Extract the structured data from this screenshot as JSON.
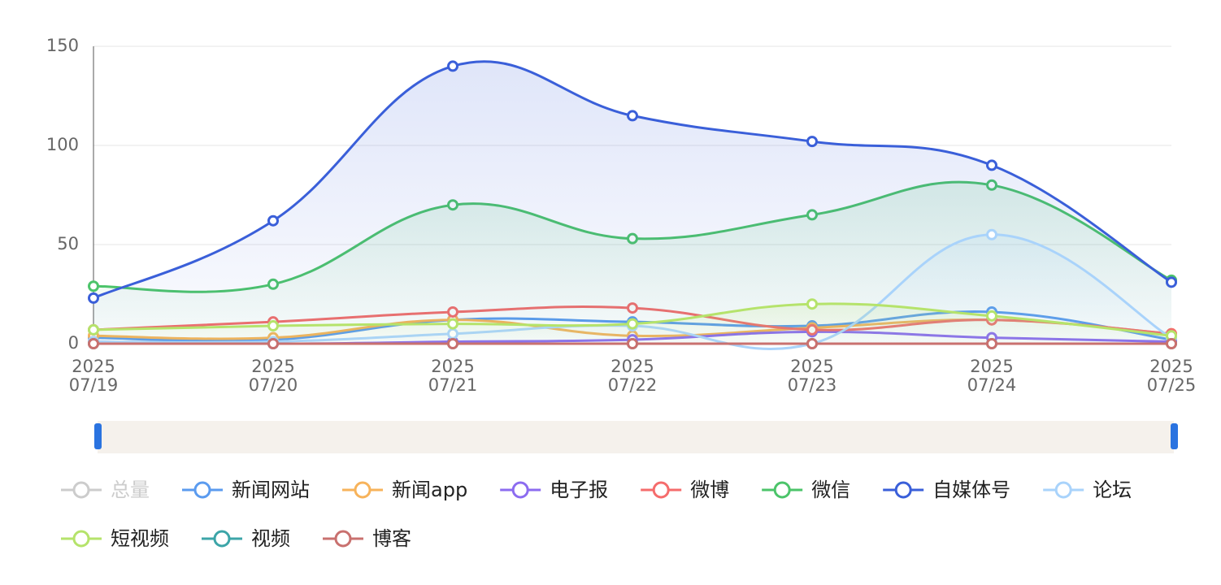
{
  "chart_data": {
    "type": "line",
    "smooth": true,
    "categories": [
      "2025\n07/19",
      "2025\n07/20",
      "2025\n07/21",
      "2025\n07/22",
      "2025\n07/23",
      "2025\n07/24",
      "2025\n07/25"
    ],
    "ylim": [
      0,
      150
    ],
    "yticks": [
      0,
      50,
      100,
      150
    ],
    "grid": true,
    "series": [
      {
        "name": "总量",
        "color": "#c8c8c8",
        "selected": false
      },
      {
        "name": "新闻网站",
        "color": "#5b9bef",
        "values": [
          3,
          2,
          12,
          11,
          9,
          16,
          2
        ]
      },
      {
        "name": "新闻app",
        "color": "#f7b35b",
        "values": [
          4,
          3,
          12,
          4,
          8,
          12,
          5
        ]
      },
      {
        "name": "电子报",
        "color": "#8c6cf0",
        "values": [
          1,
          0,
          1,
          2,
          6,
          3,
          1
        ]
      },
      {
        "name": "微博",
        "color": "#f56c6c",
        "values": [
          7,
          11,
          16,
          18,
          7,
          12,
          5
        ]
      },
      {
        "name": "微信",
        "color": "#4cc46a",
        "values": [
          29,
          30,
          70,
          53,
          65,
          80,
          32
        ],
        "area": true
      },
      {
        "name": "自媒体号",
        "color": "#3a5fd9",
        "values": [
          23,
          62,
          140,
          115,
          102,
          90,
          31
        ],
        "area": true
      },
      {
        "name": "论坛",
        "color": "#a9d3fb",
        "values": [
          1,
          1,
          5,
          9,
          0,
          55,
          3
        ],
        "area": true
      },
      {
        "name": "短视频",
        "color": "#b5e36b",
        "values": [
          7,
          9,
          10,
          10,
          20,
          14,
          4
        ],
        "area": true
      },
      {
        "name": "视频",
        "color": "#3ca5a8",
        "values": [
          0,
          0,
          0,
          0,
          0,
          0,
          0
        ]
      },
      {
        "name": "博客",
        "color": "#c9716f",
        "values": [
          0,
          0,
          0,
          0,
          0,
          0,
          0
        ]
      }
    ]
  }
}
